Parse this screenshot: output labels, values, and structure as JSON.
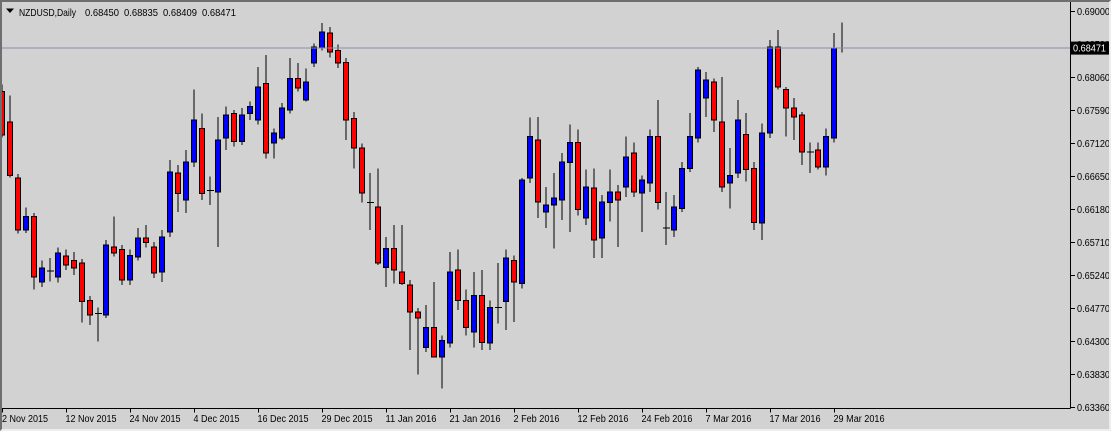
{
  "window": {
    "title": {
      "symbol_period": "NZDUSD,Daily",
      "open": "0.68450",
      "high": "0.68835",
      "low": "0.68409",
      "close": "0.68471"
    }
  },
  "colors": {
    "background": "#d2d2d2",
    "bull_body": "#0000ff",
    "bear_body": "#ff0000",
    "candle_outline": "#000000",
    "wick": "#000000",
    "axis_line": "#000000",
    "axis_text": "#000000",
    "title_text": "#000000",
    "current_price_line": "#8493a8",
    "price_badge_bg": "#000000",
    "price_badge_text": "#ffffff",
    "frame_dark": "#6e6e6e",
    "frame_light": "#ededed"
  },
  "chart_data": {
    "type": "candlestick",
    "symbol": "NZDUSD",
    "timeframe": "Daily",
    "title": "NZDUSD,Daily  0.68450 0.68835 0.68409 0.68471",
    "grid": false,
    "legend": null,
    "current_price": 0.68471,
    "current_price_label": "0.68471",
    "last_bar_ohlc": {
      "open": 0.6845,
      "high": 0.68835,
      "low": 0.68409,
      "close": 0.68471
    },
    "y_axis": {
      "side": "right",
      "step": 0.0047,
      "ylim": [
        0.63345,
        0.69155
      ],
      "ticks": [
        "0.69000",
        "0.68530",
        "0.68060",
        "0.67590",
        "0.67120",
        "0.66650",
        "0.66180",
        "0.65710",
        "0.65240",
        "0.64770",
        "0.64300",
        "0.63830",
        "0.63360"
      ]
    },
    "x_axis": {
      "bars_per_tick": 8,
      "labels": [
        "2 Nov 2015",
        "12 Nov 2015",
        "24 Nov 2015",
        "4 Dec 2015",
        "16 Dec 2015",
        "29 Dec 2015",
        "11 Jan 2016",
        "21 Jan 2016",
        "2 Feb 2016",
        "12 Feb 2016",
        "24 Feb 2016",
        "7 Mar 2016",
        "17 Mar 2016",
        "29 Mar 2016"
      ]
    },
    "candles_format": [
      "open",
      "high",
      "low",
      "close"
    ],
    "candles": [
      [
        0.6785,
        0.6795,
        0.672,
        0.6723
      ],
      [
        0.6742,
        0.678,
        0.6663,
        0.6666
      ],
      [
        0.6662,
        0.6668,
        0.6583,
        0.6588
      ],
      [
        0.6588,
        0.662,
        0.6584,
        0.6607
      ],
      [
        0.6607,
        0.6612,
        0.6503,
        0.6521
      ],
      [
        0.6514,
        0.6545,
        0.6507,
        0.6534
      ],
      [
        0.6532,
        0.6548,
        0.6515,
        0.653
      ],
      [
        0.6521,
        0.6563,
        0.6513,
        0.6555
      ],
      [
        0.6551,
        0.656,
        0.6531,
        0.6538
      ],
      [
        0.6545,
        0.6557,
        0.6524,
        0.6534
      ],
      [
        0.6541,
        0.6547,
        0.6456,
        0.6486
      ],
      [
        0.6488,
        0.6494,
        0.6453,
        0.6467
      ],
      [
        0.647,
        0.6478,
        0.6429,
        0.6469
      ],
      [
        0.6467,
        0.6574,
        0.6463,
        0.6567
      ],
      [
        0.6564,
        0.6607,
        0.655,
        0.6555
      ],
      [
        0.656,
        0.6567,
        0.651,
        0.6517
      ],
      [
        0.6517,
        0.656,
        0.651,
        0.6552
      ],
      [
        0.655,
        0.6591,
        0.6545,
        0.6577
      ],
      [
        0.6577,
        0.6595,
        0.6563,
        0.657
      ],
      [
        0.6564,
        0.6571,
        0.652,
        0.6527
      ],
      [
        0.6528,
        0.6588,
        0.6514,
        0.6578
      ],
      [
        0.6585,
        0.6688,
        0.6578,
        0.6671
      ],
      [
        0.6669,
        0.6681,
        0.6614,
        0.664
      ],
      [
        0.6631,
        0.6702,
        0.6612,
        0.6685
      ],
      [
        0.6685,
        0.6788,
        0.6678,
        0.6745
      ],
      [
        0.6733,
        0.6754,
        0.6631,
        0.664
      ],
      [
        0.6646,
        0.6664,
        0.6624,
        0.6644
      ],
      [
        0.6642,
        0.6749,
        0.6564,
        0.6716
      ],
      [
        0.6719,
        0.6764,
        0.6702,
        0.6752
      ],
      [
        0.6754,
        0.6759,
        0.6707,
        0.6714
      ],
      [
        0.6714,
        0.6762,
        0.6709,
        0.6752
      ],
      [
        0.6754,
        0.6771,
        0.6745,
        0.6764
      ],
      [
        0.6745,
        0.682,
        0.6738,
        0.6792
      ],
      [
        0.6797,
        0.6837,
        0.669,
        0.6698
      ],
      [
        0.6712,
        0.6733,
        0.669,
        0.6726
      ],
      [
        0.6719,
        0.6769,
        0.6716,
        0.6762
      ],
      [
        0.6759,
        0.6833,
        0.6754,
        0.6804
      ],
      [
        0.6804,
        0.6826,
        0.6785,
        0.679
      ],
      [
        0.6773,
        0.6818,
        0.6771,
        0.6799
      ],
      [
        0.6826,
        0.6854,
        0.682,
        0.6849
      ],
      [
        0.6847,
        0.6883,
        0.6844,
        0.687
      ],
      [
        0.6869,
        0.6877,
        0.6834,
        0.6842
      ],
      [
        0.6844,
        0.6852,
        0.6819,
        0.6826
      ],
      [
        0.6827,
        0.6833,
        0.6716,
        0.6745
      ],
      [
        0.6747,
        0.6756,
        0.6676,
        0.6705
      ],
      [
        0.6705,
        0.6711,
        0.6627,
        0.6641
      ],
      [
        0.6627,
        0.6669,
        0.6588,
        0.6627
      ],
      [
        0.6621,
        0.6676,
        0.6538,
        0.6541
      ],
      [
        0.6535,
        0.6578,
        0.6507,
        0.6562
      ],
      [
        0.6562,
        0.6595,
        0.6512,
        0.6531
      ],
      [
        0.6528,
        0.6595,
        0.651,
        0.6512
      ],
      [
        0.651,
        0.6517,
        0.6417,
        0.6471
      ],
      [
        0.6471,
        0.6477,
        0.6382,
        0.6463
      ],
      [
        0.6421,
        0.6481,
        0.6414,
        0.6449
      ],
      [
        0.6449,
        0.6514,
        0.6407,
        0.6407
      ],
      [
        0.6407,
        0.6438,
        0.6362,
        0.6431
      ],
      [
        0.6427,
        0.6557,
        0.6421,
        0.6528
      ],
      [
        0.6531,
        0.656,
        0.6474,
        0.6488
      ],
      [
        0.6488,
        0.6503,
        0.6438,
        0.6449
      ],
      [
        0.6443,
        0.6528,
        0.6421,
        0.6495
      ],
      [
        0.6495,
        0.6531,
        0.6417,
        0.6428
      ],
      [
        0.6427,
        0.6488,
        0.6417,
        0.6478
      ],
      [
        0.6478,
        0.6541,
        0.6455,
        0.6478
      ],
      [
        0.6486,
        0.656,
        0.6446,
        0.6548
      ],
      [
        0.6545,
        0.6552,
        0.6457,
        0.6514
      ],
      [
        0.6512,
        0.6662,
        0.6505,
        0.6659
      ],
      [
        0.6662,
        0.6748,
        0.6655,
        0.6721
      ],
      [
        0.6716,
        0.6749,
        0.6605,
        0.6628
      ],
      [
        0.6614,
        0.6649,
        0.6591,
        0.6624
      ],
      [
        0.6624,
        0.6669,
        0.6562,
        0.6634
      ],
      [
        0.6631,
        0.6698,
        0.6602,
        0.6685
      ],
      [
        0.6684,
        0.6738,
        0.6585,
        0.6713
      ],
      [
        0.6713,
        0.6731,
        0.6609,
        0.6617
      ],
      [
        0.6605,
        0.6674,
        0.6595,
        0.6649
      ],
      [
        0.6648,
        0.6676,
        0.6548,
        0.6574
      ],
      [
        0.6577,
        0.6638,
        0.6548,
        0.6628
      ],
      [
        0.6627,
        0.6674,
        0.66,
        0.6642
      ],
      [
        0.6642,
        0.6652,
        0.6564,
        0.6631
      ],
      [
        0.6649,
        0.6721,
        0.6635,
        0.6692
      ],
      [
        0.6698,
        0.6713,
        0.6635,
        0.6642
      ],
      [
        0.6641,
        0.6666,
        0.6585,
        0.6659
      ],
      [
        0.6655,
        0.6731,
        0.6642,
        0.6721
      ],
      [
        0.6721,
        0.6773,
        0.6617,
        0.6627
      ],
      [
        0.6591,
        0.6642,
        0.6567,
        0.6591
      ],
      [
        0.6588,
        0.6638,
        0.6578,
        0.6621
      ],
      [
        0.6619,
        0.6685,
        0.6614,
        0.6676
      ],
      [
        0.6676,
        0.6755,
        0.6671,
        0.6721
      ],
      [
        0.6719,
        0.682,
        0.6713,
        0.6816
      ],
      [
        0.6776,
        0.6813,
        0.6749,
        0.6802
      ],
      [
        0.6799,
        0.6804,
        0.6728,
        0.6745
      ],
      [
        0.6742,
        0.6806,
        0.6642,
        0.6649
      ],
      [
        0.6655,
        0.6705,
        0.6619,
        0.6666
      ],
      [
        0.6669,
        0.6773,
        0.6662,
        0.6745
      ],
      [
        0.6724,
        0.6755,
        0.6657,
        0.6674
      ],
      [
        0.6676,
        0.6685,
        0.6588,
        0.6599
      ],
      [
        0.6598,
        0.674,
        0.6574,
        0.6726
      ],
      [
        0.6726,
        0.6859,
        0.6719,
        0.6849
      ],
      [
        0.6849,
        0.6873,
        0.6788,
        0.6792
      ],
      [
        0.6788,
        0.6792,
        0.6721,
        0.6762
      ],
      [
        0.6762,
        0.6776,
        0.6716,
        0.6749
      ],
      [
        0.6752,
        0.6756,
        0.6681,
        0.6699
      ],
      [
        0.6699,
        0.6713,
        0.6669,
        0.6699
      ],
      [
        0.6702,
        0.6713,
        0.6674,
        0.6678
      ],
      [
        0.6678,
        0.6733,
        0.6666,
        0.6721
      ],
      [
        0.6719,
        0.6869,
        0.6713,
        0.6847
      ],
      [
        0.6845,
        0.68835,
        0.68409,
        0.68471
      ]
    ]
  }
}
